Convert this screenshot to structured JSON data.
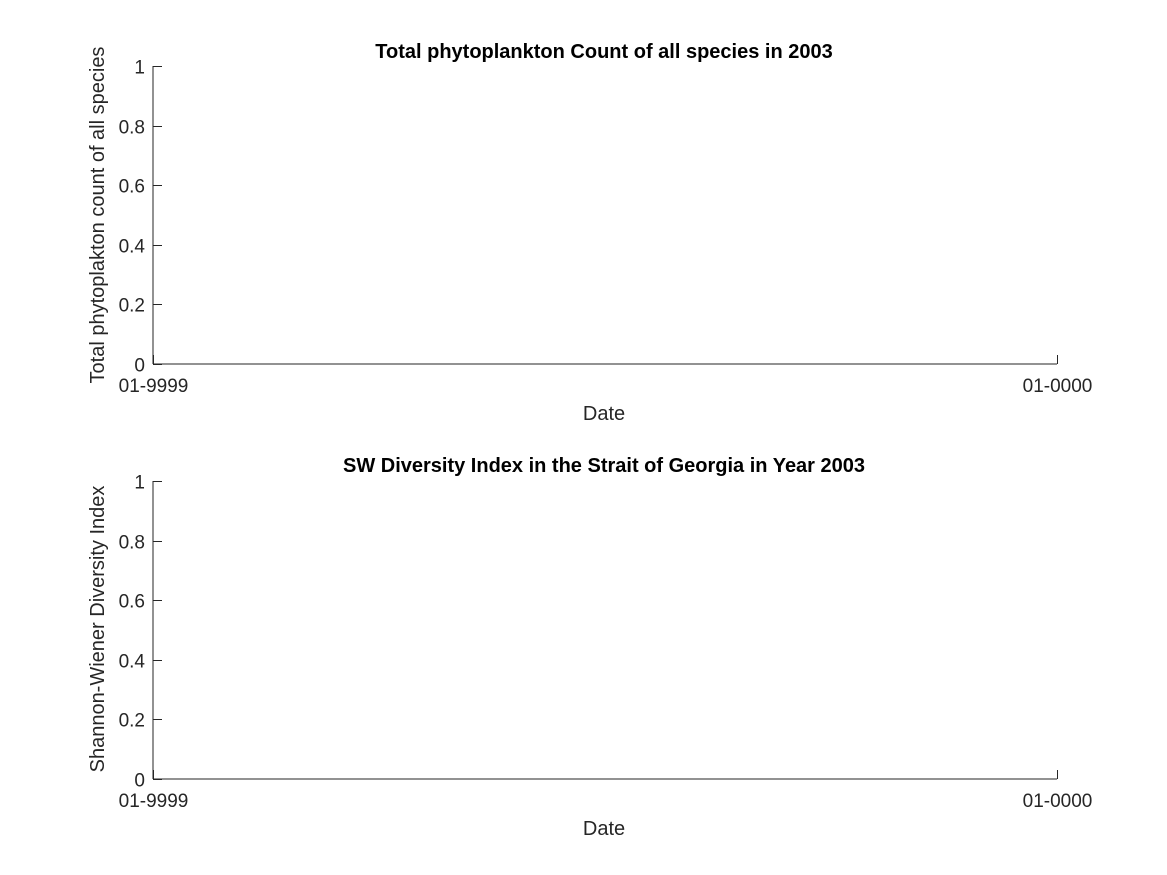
{
  "chart_data": [
    {
      "type": "line",
      "title": "Total phytoplankton Count of all species in 2003",
      "xlabel": "Date",
      "ylabel": "Total phytoplakton count of all species",
      "x_tick_labels": [
        "01-9999",
        "01-0000"
      ],
      "y_ticks": [
        0,
        0.2,
        0.4,
        0.6,
        0.8,
        1
      ],
      "y_tick_labels": [
        "0",
        "0.2",
        "0.4",
        "0.6",
        "0.8",
        "1"
      ],
      "ylim": [
        0,
        1
      ],
      "grid": false,
      "series": []
    },
    {
      "type": "line",
      "title": "SW Diversity Index in the Strait of Georgia in Year 2003",
      "xlabel": "Date",
      "ylabel": "Shannon-Wiener Diversity Index",
      "x_tick_labels": [
        "01-9999",
        "01-0000"
      ],
      "y_ticks": [
        0,
        0.2,
        0.4,
        0.6,
        0.8,
        1
      ],
      "y_tick_labels": [
        "0",
        "0.2",
        "0.4",
        "0.6",
        "0.8",
        "1"
      ],
      "ylim": [
        0,
        1
      ],
      "grid": false,
      "series": []
    }
  ]
}
